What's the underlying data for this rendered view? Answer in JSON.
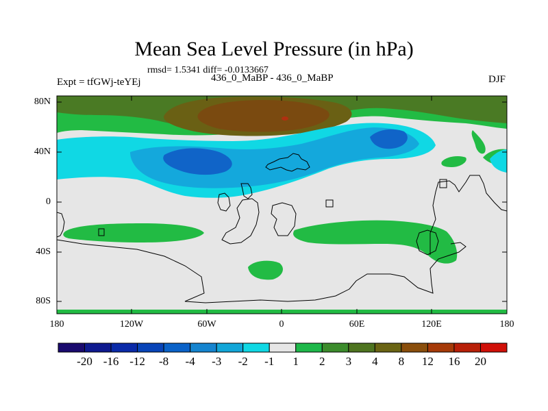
{
  "title": "Mean Sea Level Pressure (in hPa)",
  "stats": "rmsd= 1.5341 diff= -0.0133667",
  "experiment": "Expt = tfGWj-teYEj",
  "comparison": "436_0_MaBP - 436_0_MaBP",
  "season": "DJF",
  "y_ticks": [
    "80N",
    "40N",
    "0",
    "40S",
    "80S"
  ],
  "x_ticks": [
    "180",
    "120W",
    "60W",
    "0",
    "60E",
    "120E",
    "180"
  ],
  "colorbar": {
    "labels": [
      "-20",
      "-16",
      "-12",
      "-8",
      "-4",
      "-3",
      "-2",
      "-1",
      "1",
      "2",
      "3",
      "4",
      "8",
      "12",
      "16",
      "20"
    ],
    "colors": [
      "#1a0a6e",
      "#0e1a8f",
      "#0a2aa8",
      "#0844b8",
      "#0a62c8",
      "#1584cf",
      "#12a6d8",
      "#10d8e4",
      "#e6e6e6",
      "#1eb84a",
      "#3c8c2c",
      "#4e7420",
      "#6a6414",
      "#8a4e0c",
      "#a63a08",
      "#b82008",
      "#d01008"
    ]
  },
  "legend_palette": {
    "neutral": "#e6e6e6",
    "green_light": "#22bb44",
    "green_dark": "#4a7a24",
    "olive": "#6a6014",
    "brown": "#7a4a10",
    "cyan": "#10d8e4",
    "blue_mid": "#14a8dc",
    "blue_deep": "#1064c8",
    "coast": "#000000"
  }
}
